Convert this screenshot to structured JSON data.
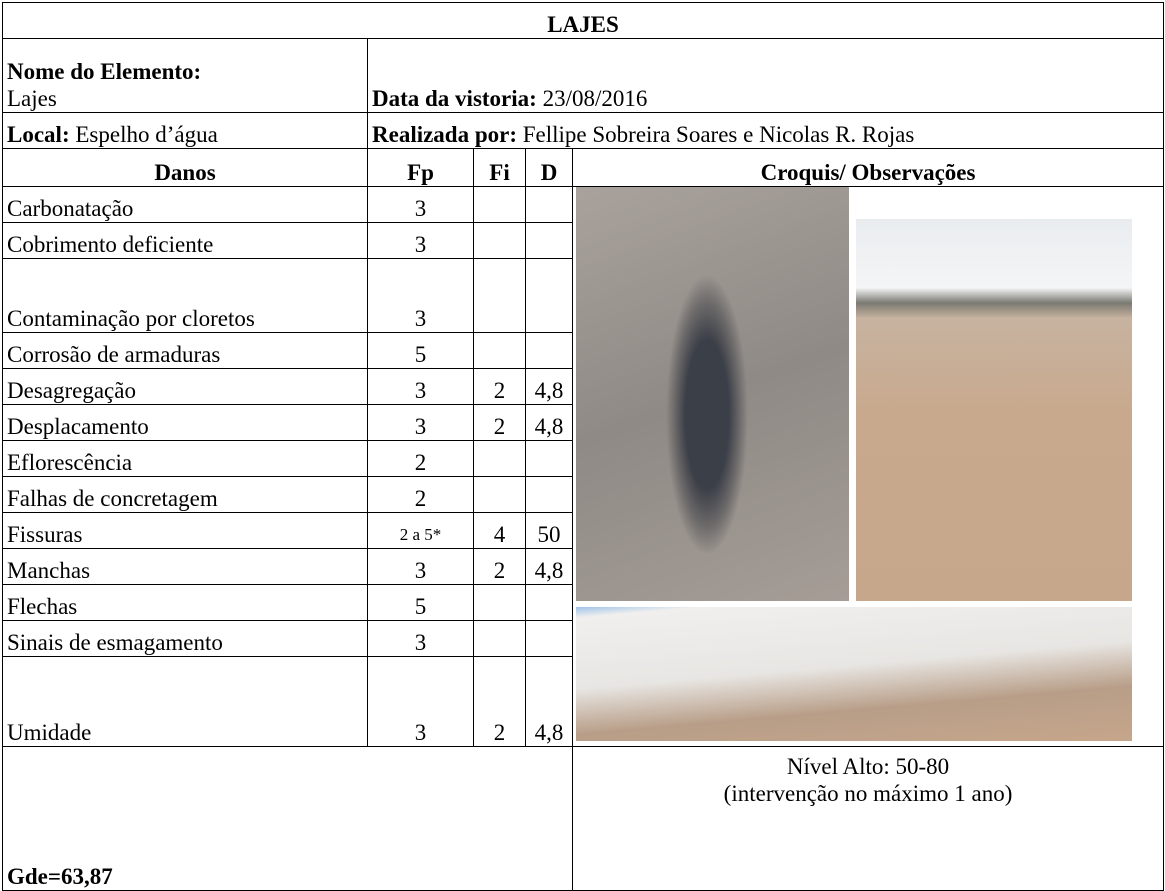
{
  "title": "LAJES",
  "element": {
    "label": "Nome do Elemento:",
    "value": "Lajes"
  },
  "inspection_date": {
    "label": "Data da vistoria:",
    "value": "23/08/2016"
  },
  "location": {
    "label": "Local:",
    "value": "Espelho d’água"
  },
  "performed_by": {
    "label": "Realizada por:",
    "value": "Fellipe Sobreira Soares e Nicolas R. Rojas"
  },
  "table": {
    "columns": [
      "Danos",
      "Fp",
      "Fi",
      "D",
      "Croquis/ Observações"
    ],
    "rows": [
      {
        "dano": "Carbonatação",
        "fp": "3"
      },
      {
        "dano": "Cobrimento deficiente",
        "fp": "3"
      },
      {
        "dano": "Contaminação por cloretos",
        "fp": "3"
      },
      {
        "dano": "Corrosão de armaduras",
        "fp": "5"
      },
      {
        "dano": "Desagregação",
        "fp": "3",
        "fi": "2",
        "d": "4,8"
      },
      {
        "dano": "Desplacamento",
        "fp": "3",
        "fi": "2",
        "d": "4,8"
      },
      {
        "dano": "Eflorescência",
        "fp": "2"
      },
      {
        "dano": "Falhas de concretagem",
        "fp": "2"
      },
      {
        "dano": "Fissuras",
        "fp": "2 a 5*",
        "fi": "4",
        "d": "50"
      },
      {
        "dano": "Manchas",
        "fp": "3",
        "fi": "2",
        "d": "4,8"
      },
      {
        "dano": "Flechas",
        "fp": "5"
      },
      {
        "dano": "Sinais de esmagamento",
        "fp": "3"
      },
      {
        "dano": "Umidade",
        "fp": "3",
        "fi": "2",
        "d": "4,8"
      }
    ]
  },
  "footer": {
    "gde": "Gde=63,87",
    "level": "Nível Alto: 50-80",
    "intervention": "(intervenção no máximo 1 ano)"
  }
}
